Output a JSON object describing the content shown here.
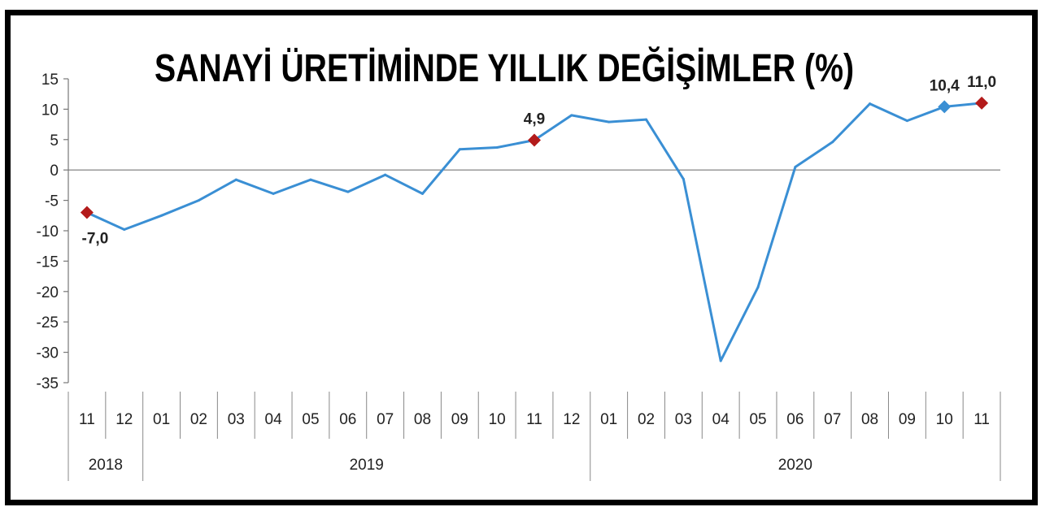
{
  "chart_data": {
    "type": "line",
    "title": "SANAYİ ÜRETİMİNDE YILLIK DEĞİŞİMLER (%)",
    "xlabel": "",
    "ylabel": "",
    "ylim": [
      -35,
      15
    ],
    "yticks": [
      "15",
      "10",
      "5",
      "0",
      "-5",
      "-10",
      "-15",
      "-20",
      "-25",
      "-30",
      "-35"
    ],
    "ytick_values": [
      15,
      10,
      5,
      0,
      -5,
      -10,
      -15,
      -20,
      -25,
      -30,
      -35
    ],
    "categories": [
      "11",
      "12",
      "01",
      "02",
      "03",
      "04",
      "05",
      "06",
      "07",
      "08",
      "09",
      "10",
      "11",
      "12",
      "01",
      "02",
      "03",
      "04",
      "05",
      "06",
      "07",
      "08",
      "09",
      "10",
      "11"
    ],
    "year_groups": [
      {
        "label": "2018",
        "start": 0,
        "end": 1
      },
      {
        "label": "2019",
        "start": 2,
        "end": 13
      },
      {
        "label": "2020",
        "start": 14,
        "end": 24
      }
    ],
    "series": [
      {
        "values": [
          -7.0,
          -9.8,
          -7.5,
          -5.0,
          -1.6,
          -3.9,
          -1.6,
          -3.6,
          -0.8,
          -3.9,
          3.4,
          3.7,
          4.9,
          9.0,
          7.9,
          8.3,
          -1.5,
          -31.4,
          -19.3,
          0.5,
          4.6,
          10.9,
          8.1,
          10.4,
          11.0
        ],
        "color": "#3a8fd4"
      }
    ],
    "markers": [
      {
        "index": 0,
        "label": "-7,0",
        "color": "#b31b1b"
      },
      {
        "index": 12,
        "label": "4,9",
        "color": "#b31b1b"
      },
      {
        "index": 23,
        "label": "10,4",
        "color": "#3a8fd4"
      },
      {
        "index": 24,
        "label": "11,0",
        "color": "#b31b1b"
      }
    ],
    "grid": false,
    "legend": "none"
  }
}
